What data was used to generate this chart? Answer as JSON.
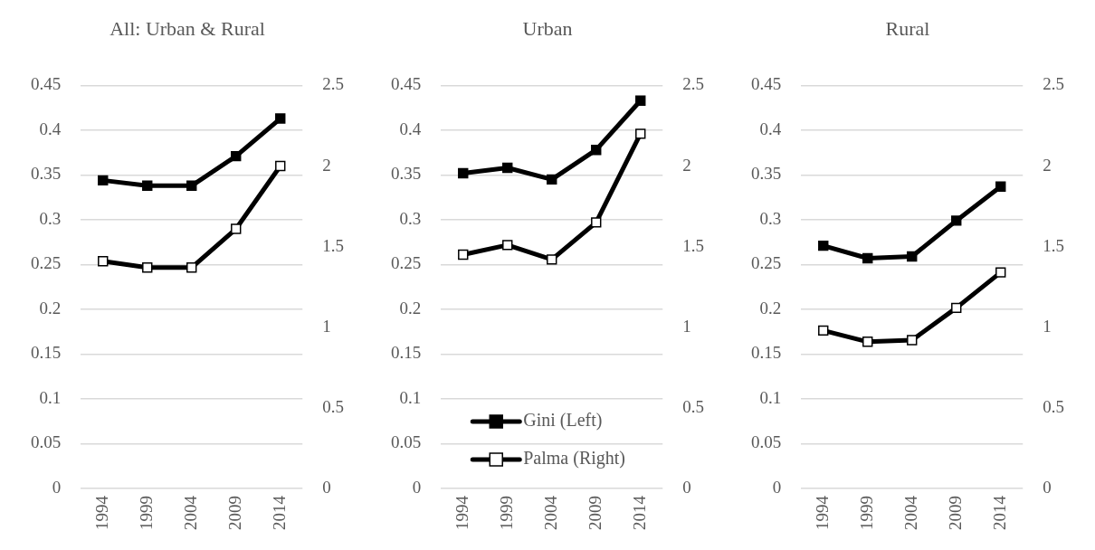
{
  "chart_data": [
    {
      "type": "line",
      "title": "All: Urban & Rural",
      "categories": [
        "1994",
        "1999",
        "2004",
        "2009",
        "2014"
      ],
      "series": [
        {
          "color": "#000000",
          "values": [
            0.344,
            0.338,
            0.338,
            0.371,
            0.413
          ]
        },
        {
          "color": "#000000",
          "values": [
            1.41,
            1.37,
            1.37,
            1.61,
            2.0
          ],
          "axis": "y2"
        }
      ],
      "ylim": [
        0,
        0.45
      ],
      "yticks": [
        0,
        0.05,
        0.1,
        0.15,
        0.2,
        0.25,
        0.3,
        0.35,
        0.4,
        0.45
      ],
      "y2lim": [
        0,
        2.5
      ],
      "y2ticks": [
        0,
        0.5,
        1,
        1.5,
        2,
        2.5
      ],
      "grid": "y",
      "marker": "square"
    },
    {
      "type": "line",
      "title": "Urban",
      "categories": [
        "1994",
        "1999",
        "2004",
        "2009",
        "2014"
      ],
      "series": [
        {
          "name": "Gini (Left)",
          "color": "#000000",
          "values": [
            0.352,
            0.358,
            0.345,
            0.378,
            0.433
          ]
        },
        {
          "name": "Palma (Right)",
          "color": "#000000",
          "values": [
            1.45,
            1.51,
            1.42,
            1.65,
            2.2
          ],
          "axis": "y2"
        }
      ],
      "ylim": [
        0,
        0.45
      ],
      "yticks": [
        0,
        0.05,
        0.1,
        0.15,
        0.2,
        0.25,
        0.3,
        0.35,
        0.4,
        0.45
      ],
      "y2lim": [
        0,
        2.5
      ],
      "y2ticks": [
        0,
        0.5,
        1,
        1.5,
        2,
        2.5
      ],
      "grid": "y",
      "marker": "square",
      "legend": "bottom"
    },
    {
      "type": "line",
      "title": "Rural",
      "categories": [
        "1994",
        "1999",
        "2004",
        "2009",
        "2014"
      ],
      "series": [
        {
          "color": "#000000",
          "values": [
            0.271,
            0.257,
            0.259,
            0.299,
            0.337
          ]
        },
        {
          "color": "#000000",
          "values": [
            0.98,
            0.91,
            0.92,
            1.12,
            1.34
          ],
          "axis": "y2"
        }
      ],
      "ylim": [
        0,
        0.45
      ],
      "yticks": [
        0,
        0.05,
        0.1,
        0.15,
        0.2,
        0.25,
        0.3,
        0.35,
        0.4,
        0.45
      ],
      "y2lim": [
        0,
        2.5
      ],
      "y2ticks": [
        0,
        0.5,
        1,
        1.5,
        2,
        2.5
      ],
      "grid": "y",
      "marker": "square"
    }
  ]
}
